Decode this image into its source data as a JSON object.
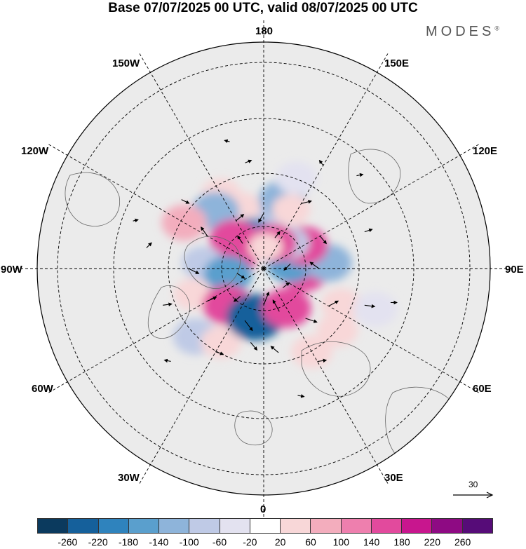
{
  "title": "Base 07/07/2025 00 UTC, valid 08/07/2025 00 UTC",
  "brand": {
    "name": "MODES",
    "mark": "®"
  },
  "longitude_labels": {
    "n180": "180",
    "e150": "150E",
    "e120": "120E",
    "e90": "90E",
    "e60": "60E",
    "e30": "30E",
    "s0": "0",
    "w30": "30W",
    "w60": "60W",
    "w90": "90W",
    "w120": "120W",
    "w150": "150W"
  },
  "wind_scale": {
    "value": "30",
    "icon": "arrow-right-icon"
  },
  "colorbar": {
    "colors": [
      "#0b3a5e",
      "#15609b",
      "#2f83bd",
      "#5a9fcd",
      "#8eb4da",
      "#bfcae6",
      "#e3e2f0",
      "#ffffff",
      "#f8d7d8",
      "#f3adbd",
      "#ee7fae",
      "#e24a9d",
      "#c8168e",
      "#8e0a83",
      "#560c78"
    ],
    "ticks": [
      "-260",
      "-220",
      "-180",
      "-140",
      "-100",
      "-60",
      "-20",
      "20",
      "60",
      "100",
      "140",
      "180",
      "220",
      "260"
    ]
  },
  "anomalies": [
    {
      "lon": 175,
      "lat": 62,
      "level": -2
    },
    {
      "lon": 165,
      "lat": 52,
      "level": -3
    },
    {
      "lon": 155,
      "lat": 55,
      "level": 1
    },
    {
      "lon": 160,
      "lat": 40,
      "level": -1
    },
    {
      "lon": -160,
      "lat": 55,
      "level": 1
    },
    {
      "lon": -150,
      "lat": 45,
      "level": 1
    },
    {
      "lon": -140,
      "lat": 50,
      "level": -3
    },
    {
      "lon": -155,
      "lat": 72,
      "level": -5
    },
    {
      "lon": -135,
      "lat": 67,
      "level": 4
    },
    {
      "lon": -120,
      "lat": 42,
      "level": 2
    },
    {
      "lon": -110,
      "lat": 72,
      "level": 4
    },
    {
      "lon": -95,
      "lat": 57,
      "level": -2
    },
    {
      "lon": -80,
      "lat": 70,
      "level": -4
    },
    {
      "lon": -70,
      "lat": 50,
      "level": 1
    },
    {
      "lon": -45,
      "lat": 62,
      "level": 4
    },
    {
      "lon": -45,
      "lat": 40,
      "level": -2
    },
    {
      "lon": -30,
      "lat": 45,
      "level": 1
    },
    {
      "lon": -10,
      "lat": 63,
      "level": -6
    },
    {
      "lon": 30,
      "lat": 65,
      "level": 4
    },
    {
      "lon": 30,
      "lat": 40,
      "level": 1
    },
    {
      "lon": 50,
      "lat": 40,
      "level": 1
    },
    {
      "lon": 65,
      "lat": 45,
      "level": 1
    },
    {
      "lon": 85,
      "lat": 68,
      "level": 4
    },
    {
      "lon": 100,
      "lat": 75,
      "level": -4
    },
    {
      "lon": 95,
      "lat": 55,
      "level": -3
    },
    {
      "lon": 120,
      "lat": 65,
      "level": 4
    },
    {
      "lon": 135,
      "lat": 70,
      "level": -2
    },
    {
      "lon": 160,
      "lat": 75,
      "level": 4
    },
    {
      "lon": 175,
      "lat": 78,
      "level": 1
    },
    {
      "lon": 70,
      "lat": 30,
      "level": -1
    }
  ],
  "wind_arrows": [
    {
      "lon": 0,
      "lat": 70,
      "u": 8,
      "v": 20
    },
    {
      "lon": 20,
      "lat": 65,
      "u": -10,
      "v": 18
    },
    {
      "lon": -20,
      "lat": 60,
      "u": 12,
      "v": -16
    },
    {
      "lon": 40,
      "lat": 55,
      "u": 18,
      "v": -6
    },
    {
      "lon": 60,
      "lat": 50,
      "u": 15,
      "v": 8
    },
    {
      "lon": 90,
      "lat": 60,
      "u": -14,
      "v": 10
    },
    {
      "lon": 120,
      "lat": 55,
      "u": 10,
      "v": -12
    },
    {
      "lon": 150,
      "lat": 50,
      "u": 16,
      "v": 4
    },
    {
      "lon": 180,
      "lat": 60,
      "u": -8,
      "v": -14
    },
    {
      "lon": -150,
      "lat": 60,
      "u": 12,
      "v": 10
    },
    {
      "lon": -120,
      "lat": 55,
      "u": -10,
      "v": 14
    },
    {
      "lon": -90,
      "lat": 50,
      "u": 16,
      "v": -8
    },
    {
      "lon": -60,
      "lat": 55,
      "u": 14,
      "v": 6
    },
    {
      "lon": -30,
      "lat": 40,
      "u": 12,
      "v": -4
    },
    {
      "lon": 30,
      "lat": 35,
      "u": 14,
      "v": 2
    },
    {
      "lon": 70,
      "lat": 35,
      "u": 16,
      "v": -2
    },
    {
      "lon": 110,
      "lat": 35,
      "u": 12,
      "v": 4
    },
    {
      "lon": 150,
      "lat": 30,
      "u": -6,
      "v": 8
    },
    {
      "lon": -170,
      "lat": 35,
      "u": 10,
      "v": 4
    },
    {
      "lon": -130,
      "lat": 35,
      "u": 12,
      "v": -6
    },
    {
      "lon": -100,
      "lat": 30,
      "u": 8,
      "v": 8
    },
    {
      "lon": -70,
      "lat": 35,
      "u": 14,
      "v": 2
    },
    {
      "lon": 10,
      "lat": 45,
      "u": -12,
      "v": 10
    },
    {
      "lon": -10,
      "lat": 50,
      "u": 10,
      "v": -12
    },
    {
      "lon": 100,
      "lat": 75,
      "u": -10,
      "v": -10
    },
    {
      "lon": -80,
      "lat": 75,
      "u": 12,
      "v": -8
    },
    {
      "lon": 160,
      "lat": 72,
      "u": 8,
      "v": 10
    },
    {
      "lon": -140,
      "lat": 72,
      "u": -8,
      "v": 12
    },
    {
      "lon": 45,
      "lat": 75,
      "u": 10,
      "v": 8
    },
    {
      "lon": -40,
      "lat": 70,
      "u": -10,
      "v": -8
    },
    {
      "lon": 75,
      "lat": 25,
      "u": 10,
      "v": 0
    },
    {
      "lon": -45,
      "lat": 25,
      "u": -10,
      "v": 2
    },
    {
      "lon": 135,
      "lat": 25,
      "u": 10,
      "v": 2
    },
    {
      "lon": -165,
      "lat": 25,
      "u": -8,
      "v": 2
    },
    {
      "lon": 15,
      "lat": 25,
      "u": 10,
      "v": -2
    },
    {
      "lon": -110,
      "lat": 22,
      "u": 8,
      "v": 2
    }
  ]
}
